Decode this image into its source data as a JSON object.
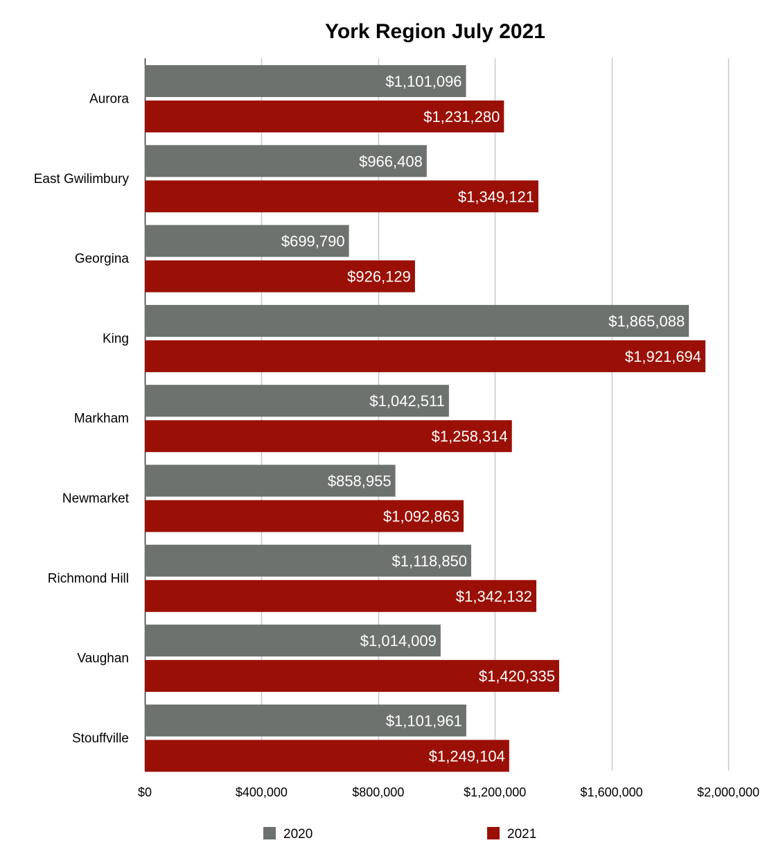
{
  "chart_data": {
    "type": "bar",
    "orientation": "horizontal",
    "title": "York Region July 2021",
    "xlabel": "",
    "ylabel": "",
    "xlim": [
      0,
      2000000
    ],
    "grid": true,
    "legend_position": "bottom",
    "categories": [
      "Aurora",
      "East Gwilimbury",
      "Georgina",
      "King",
      "Markham",
      "Newmarket",
      "Richmond Hill",
      "Vaughan",
      "Stouffville"
    ],
    "ticks": [
      {
        "value": 0,
        "label": "$0"
      },
      {
        "value": 400000,
        "label": "$400,000"
      },
      {
        "value": 800000,
        "label": "$800,000"
      },
      {
        "value": 1200000,
        "label": "$1,200,000"
      },
      {
        "value": 1600000,
        "label": "$1,600,000"
      },
      {
        "value": 2000000,
        "label": "$2,000,000"
      }
    ],
    "series": [
      {
        "name": "2020",
        "color": "#6d726f",
        "values": [
          1101096,
          966408,
          699790,
          1865088,
          1042511,
          858955,
          1118850,
          1014009,
          1101961
        ],
        "labels": [
          "$1,101,096",
          "$966,408",
          "$699,790",
          "$1,865,088",
          "$1,042,511",
          "$858,955",
          "$1,118,850",
          "$1,014,009",
          "$1,101,961"
        ]
      },
      {
        "name": "2021",
        "color": "#9a1006",
        "values": [
          1231280,
          1349121,
          926129,
          1921694,
          1258314,
          1092863,
          1342132,
          1420335,
          1249104
        ],
        "labels": [
          "$1,231,280",
          "$1,349,121",
          "$926,129",
          "$1,921,694",
          "$1,258,314",
          "$1,092,863",
          "$1,342,132",
          "$1,420,335",
          "$1,249,104"
        ]
      }
    ]
  }
}
